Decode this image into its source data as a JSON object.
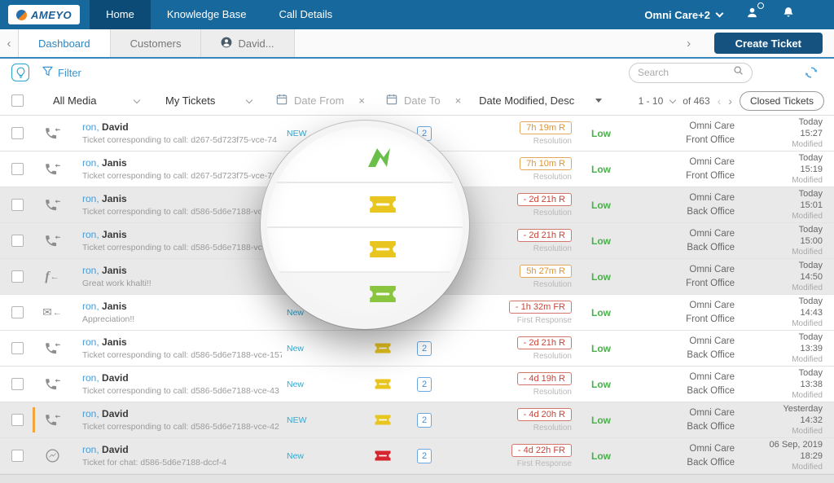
{
  "colors": {
    "nav_bg": "#16689d",
    "nav_active_tab": "#0d4b77",
    "accent_blue": "#4a9bd5",
    "new_label_teal": "#38a7cd",
    "sla_warn": "#dd9434",
    "sla_overdue": "#c9443a",
    "priority_low_green": "#4cae4c",
    "ticket_yellow": "#e8c51f",
    "ticket_green": "#8ac53f",
    "ticket_red": "#d6252e",
    "create_button": "#15527f"
  },
  "nav": {
    "brand": "AMEYO",
    "tabs": [
      {
        "label": "Home",
        "active": true
      },
      {
        "label": "Knowledge Base",
        "active": false
      },
      {
        "label": "Call Details",
        "active": false
      }
    ],
    "workspace": "Omni Care+2"
  },
  "tabbar": {
    "tabs": [
      {
        "label": "Dashboard",
        "active": true
      },
      {
        "label": "Customers",
        "active": false
      },
      {
        "label": "David...",
        "active": false
      }
    ],
    "create_ticket_label": "Create Ticket"
  },
  "toolbar": {
    "filter_label": "Filter",
    "search_placeholder": "Search"
  },
  "filterbar": {
    "media_filter": "All Media",
    "ticket_filter": "My Tickets",
    "date_from_placeholder": "Date From",
    "date_to_placeholder": "Date To",
    "sort_label": "Date Modified, Desc",
    "page_range": "1 - 10",
    "page_total": "of 463",
    "closed_tickets_label": "Closed Tickets"
  },
  "table": {
    "rows": [
      {
        "channel": "call-incoming-icon",
        "prefix": "ron,",
        "name": "David",
        "subject": "Ticket corresponding to call: d267-5d723f75-vce-74",
        "new_label": "NEW",
        "ticket": null,
        "count": "2",
        "sla": {
          "text": "7h 19m R",
          "sub": "Resolution",
          "type": "warn"
        },
        "priority": "Low",
        "queue": "Omni Care",
        "office": "Front Office",
        "date_line1": "Today",
        "date_line2": "15:27",
        "date_line3": "Modified",
        "shaded": false,
        "marker": false
      },
      {
        "channel": "call-incoming-icon",
        "prefix": "ron,",
        "name": "Janis",
        "subject": "Ticket corresponding to call: d267-5d723f75-vce-73",
        "new_label": "NEW",
        "ticket": null,
        "count": null,
        "sla": {
          "text": "7h 10m R",
          "sub": "Resolution",
          "type": "warn"
        },
        "priority": "Low",
        "queue": "Omni Care",
        "office": "Front Office",
        "date_line1": "Today",
        "date_line2": "15:19",
        "date_line3": "Modified",
        "shaded": false,
        "marker": false
      },
      {
        "channel": "call-incoming-icon",
        "prefix": "ron,",
        "name": "Janis",
        "subject": "Ticket corresponding to call: d586-5d6e7188-vce-15",
        "new_label": "",
        "ticket": null,
        "count": null,
        "sla": {
          "text": "- 2d 21h R",
          "sub": "Resolution",
          "type": "overdue"
        },
        "priority": "Low",
        "queue": "Omni Care",
        "office": "Back Office",
        "date_line1": "Today",
        "date_line2": "15:01",
        "date_line3": "Modified",
        "shaded": true,
        "marker": false
      },
      {
        "channel": "call-incoming-icon",
        "prefix": "ron,",
        "name": "Janis",
        "subject": "Ticket corresponding to call: d586-5d6e7188-vce-156",
        "new_label": "",
        "ticket": null,
        "count": null,
        "sla": {
          "text": "- 2d 21h R",
          "sub": "Resolution",
          "type": "overdue"
        },
        "priority": "Low",
        "queue": "Omni Care",
        "office": "Back Office",
        "date_line1": "Today",
        "date_line2": "15:00",
        "date_line3": "Modified",
        "shaded": true,
        "marker": false
      },
      {
        "channel": "facebook-incoming-icon",
        "prefix": "ron,",
        "name": "Janis",
        "subject": "Great work khalti!!",
        "new_label": "",
        "ticket": null,
        "count": null,
        "sla": {
          "text": "5h 27m R",
          "sub": "Resolution",
          "type": "warn"
        },
        "priority": "Low",
        "queue": "Omni Care",
        "office": "Front Office",
        "date_line1": "Today",
        "date_line2": "14:50",
        "date_line3": "Modified",
        "shaded": true,
        "marker": false
      },
      {
        "channel": "email-incoming-icon",
        "prefix": "ron,",
        "name": "Janis",
        "subject": "Appreciation!!",
        "new_label": "New",
        "ticket": null,
        "count": null,
        "sla": {
          "text": "- 1h 32m FR",
          "sub": "First Response",
          "type": "overdue"
        },
        "priority": "Low",
        "queue": "Omni Care",
        "office": "Front Office",
        "date_line1": "Today",
        "date_line2": "14:43",
        "date_line3": "Modified",
        "shaded": false,
        "marker": false
      },
      {
        "channel": "call-incoming-icon",
        "prefix": "ron,",
        "name": "Janis",
        "subject": "Ticket corresponding to call: d586-5d6e7188-vce-157",
        "new_label": "New",
        "ticket": "#e8c51f",
        "count": "2",
        "sla": {
          "text": "- 2d 21h R",
          "sub": "Resolution",
          "type": "overdue"
        },
        "priority": "Low",
        "queue": "Omni Care",
        "office": "Back Office",
        "date_line1": "Today",
        "date_line2": "13:39",
        "date_line3": "Modified",
        "shaded": false,
        "marker": false
      },
      {
        "channel": "call-incoming-icon",
        "prefix": "ron,",
        "name": "David",
        "subject": "Ticket corresponding to call: d586-5d6e7188-vce-43",
        "new_label": "New",
        "ticket": "#e8c51f",
        "count": "2",
        "sla": {
          "text": "- 4d 19h R",
          "sub": "Resolution",
          "type": "overdue"
        },
        "priority": "Low",
        "queue": "Omni Care",
        "office": "Back Office",
        "date_line1": "Today",
        "date_line2": "13:38",
        "date_line3": "Modified",
        "shaded": false,
        "marker": false
      },
      {
        "channel": "call-incoming-icon",
        "prefix": "ron,",
        "name": "David",
        "subject": "Ticket corresponding to call: d586-5d6e7188-vce-42",
        "new_label": "NEW",
        "ticket": "#e8c51f",
        "count": "2",
        "sla": {
          "text": "- 4d 20h R",
          "sub": "Resolution",
          "type": "overdue"
        },
        "priority": "Low",
        "queue": "Omni Care",
        "office": "Back Office",
        "date_line1": "Yesterday",
        "date_line2": "14:32",
        "date_line3": "Modified",
        "shaded": true,
        "marker": true
      },
      {
        "channel": "messenger-icon",
        "prefix": "ron,",
        "name": "David",
        "subject": "Ticket for chat: d586-5d6e7188-dccf-4",
        "new_label": "New",
        "ticket": "#d6252e",
        "count": "2",
        "sla": {
          "text": "- 4d 22h FR",
          "sub": "First Response",
          "type": "overdue"
        },
        "priority": "Low",
        "queue": "Omni Care",
        "office": "Back Office",
        "date_line1": "06 Sep, 2019",
        "date_line2": "18:29",
        "date_line3": "Modified",
        "shaded": true,
        "marker": false
      }
    ]
  },
  "lens": {
    "icons": [
      {
        "type": "swoosh",
        "name": "zoomed-green-swoosh-icon",
        "color": "#6abf4b"
      },
      {
        "type": "ticket",
        "name": "zoomed-yellow-ticket-icon",
        "color": "#e8c51f"
      },
      {
        "type": "ticket",
        "name": "zoomed-yellow-ticket-icon",
        "color": "#e8c51f"
      },
      {
        "type": "ticket",
        "name": "zoomed-green-ticket-icon",
        "color": "#8ac53f"
      }
    ]
  }
}
